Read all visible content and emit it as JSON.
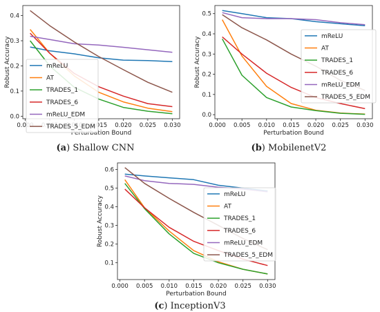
{
  "chart_data": [
    {
      "type": "line",
      "caption_letter": "(a)",
      "caption_text": "Shallow CNN",
      "xlabel": "Perturbation Bound",
      "ylabel": "Robust Accuracy",
      "x": [
        0.001,
        0.005,
        0.01,
        0.015,
        0.02,
        0.025,
        0.03
      ],
      "xticks": [
        "0.000",
        "0.005",
        "0.010",
        "0.015",
        "0.020",
        "0.025",
        "0.030"
      ],
      "yticks": [
        "0.0",
        "0.1",
        "0.2",
        "0.3",
        "0.4"
      ],
      "xlim": [
        -0.0005,
        0.0315
      ],
      "ylim": [
        -0.01,
        0.44
      ],
      "legend_position": "center-left",
      "series": [
        {
          "name": "mReLU",
          "color": "#1f77b4",
          "values": [
            0.275,
            0.26,
            0.248,
            0.232,
            0.223,
            0.221,
            0.217
          ]
        },
        {
          "name": "AT",
          "color": "#ff7f0e",
          "values": [
            0.345,
            0.25,
            0.16,
            0.095,
            0.057,
            0.032,
            0.018
          ]
        },
        {
          "name": "TRADES_1",
          "color": "#2ca02c",
          "values": [
            0.3,
            0.2,
            0.115,
            0.068,
            0.035,
            0.02,
            0.01
          ]
        },
        {
          "name": "TRADES_6",
          "color": "#d62728",
          "values": [
            0.33,
            0.25,
            0.17,
            0.117,
            0.08,
            0.05,
            0.038
          ]
        },
        {
          "name": "mReLU_EDM",
          "color": "#9467bd",
          "values": [
            0.318,
            0.305,
            0.288,
            0.283,
            0.274,
            0.264,
            0.254
          ]
        },
        {
          "name": "TRADES_5_EDM",
          "color": "#8c564b",
          "values": [
            0.42,
            0.36,
            0.295,
            0.237,
            0.185,
            0.135,
            0.095
          ]
        }
      ]
    },
    {
      "type": "line",
      "caption_letter": "(b)",
      "caption_text": "MobilenetV2",
      "xlabel": "Perturbation Bound",
      "ylabel": "Robust Accuracy",
      "x": [
        0.001,
        0.005,
        0.01,
        0.015,
        0.02,
        0.025,
        0.03
      ],
      "xticks": [
        "0.000",
        "0.005",
        "0.010",
        "0.015",
        "0.020",
        "0.025",
        "0.030"
      ],
      "yticks": [
        "0.0",
        "0.1",
        "0.2",
        "0.3",
        "0.4",
        "0.5"
      ],
      "xlim": [
        -0.0005,
        0.0315
      ],
      "ylim": [
        -0.02,
        0.54
      ],
      "legend_position": "right",
      "series": [
        {
          "name": "mReLU",
          "color": "#1f77b4",
          "values": [
            0.515,
            0.5,
            0.48,
            0.475,
            0.46,
            0.45,
            0.44
          ]
        },
        {
          "name": "AT",
          "color": "#ff7f0e",
          "values": [
            0.47,
            0.29,
            0.14,
            0.055,
            0.022,
            0.008,
            0.003
          ]
        },
        {
          "name": "TRADES_1",
          "color": "#2ca02c",
          "values": [
            0.375,
            0.195,
            0.085,
            0.038,
            0.02,
            0.007,
            0.002
          ]
        },
        {
          "name": "TRADES_6",
          "color": "#d62728",
          "values": [
            0.385,
            0.3,
            0.205,
            0.135,
            0.085,
            0.055,
            0.03
          ]
        },
        {
          "name": "mReLU_EDM",
          "color": "#9467bd",
          "values": [
            0.505,
            0.48,
            0.475,
            0.475,
            0.47,
            0.455,
            0.445
          ]
        },
        {
          "name": "TRADES_5_EDM",
          "color": "#8c564b",
          "values": [
            0.495,
            0.43,
            0.37,
            0.3,
            0.24,
            0.17,
            0.12
          ]
        }
      ]
    },
    {
      "type": "line",
      "caption_letter": "(c)",
      "caption_text": "InceptionV3",
      "xlabel": "Perturbation Bound",
      "ylabel": "Robust Accuracy",
      "x": [
        0.001,
        0.005,
        0.01,
        0.015,
        0.02,
        0.025,
        0.03
      ],
      "xticks": [
        "0.000",
        "0.005",
        "0.010",
        "0.015",
        "0.020",
        "0.025",
        "0.030"
      ],
      "yticks": [
        "0.1",
        "0.2",
        "0.3",
        "0.4",
        "0.5",
        "0.6"
      ],
      "xlim": [
        -0.0005,
        0.0315
      ],
      "ylim": [
        0.01,
        0.635
      ],
      "legend_position": "right",
      "series": [
        {
          "name": "mReLU",
          "color": "#1f77b4",
          "values": [
            0.575,
            0.565,
            0.555,
            0.545,
            0.515,
            0.5,
            0.485
          ]
        },
        {
          "name": "AT",
          "color": "#ff7f0e",
          "values": [
            0.545,
            0.395,
            0.27,
            0.165,
            0.105,
            0.065,
            0.04
          ]
        },
        {
          "name": "TRADES_1",
          "color": "#2ca02c",
          "values": [
            0.525,
            0.39,
            0.255,
            0.15,
            0.1,
            0.065,
            0.04
          ]
        },
        {
          "name": "TRADES_6",
          "color": "#d62728",
          "values": [
            0.495,
            0.395,
            0.29,
            0.215,
            0.165,
            0.12,
            0.085
          ]
        },
        {
          "name": "mReLU_EDM",
          "color": "#9467bd",
          "values": [
            0.565,
            0.54,
            0.525,
            0.52,
            0.505,
            0.495,
            0.48
          ]
        },
        {
          "name": "TRADES_5_EDM",
          "color": "#8c564b",
          "values": [
            0.61,
            0.525,
            0.445,
            0.37,
            0.3,
            0.23,
            0.17
          ]
        }
      ]
    }
  ]
}
